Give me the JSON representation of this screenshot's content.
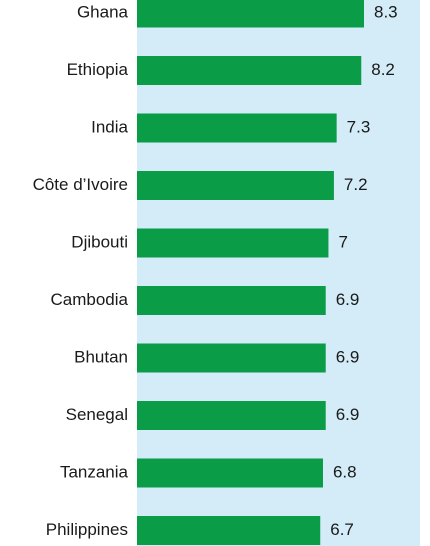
{
  "chart_data": {
    "type": "bar",
    "orientation": "horizontal",
    "categories": [
      "Ghana",
      "Ethiopia",
      "India",
      "Côte d’Ivoire",
      "Djibouti",
      "Cambodia",
      "Bhutan",
      "Senegal",
      "Tanzania",
      "Philippines"
    ],
    "values": [
      8.3,
      8.2,
      7.3,
      7.2,
      7,
      6.9,
      6.9,
      6.9,
      6.8,
      6.7
    ],
    "value_labels": [
      "8.3",
      "8.2",
      "7.3",
      "7.2",
      "7",
      "6.9",
      "6.9",
      "6.9",
      "6.8",
      "6.7"
    ],
    "title": "",
    "xlabel": "",
    "ylabel": "",
    "grid": false,
    "legend": "none",
    "colors": {
      "bar": "#0a9c47",
      "value_panel": "#d3ecf8",
      "text": "#1a1a1a"
    }
  }
}
